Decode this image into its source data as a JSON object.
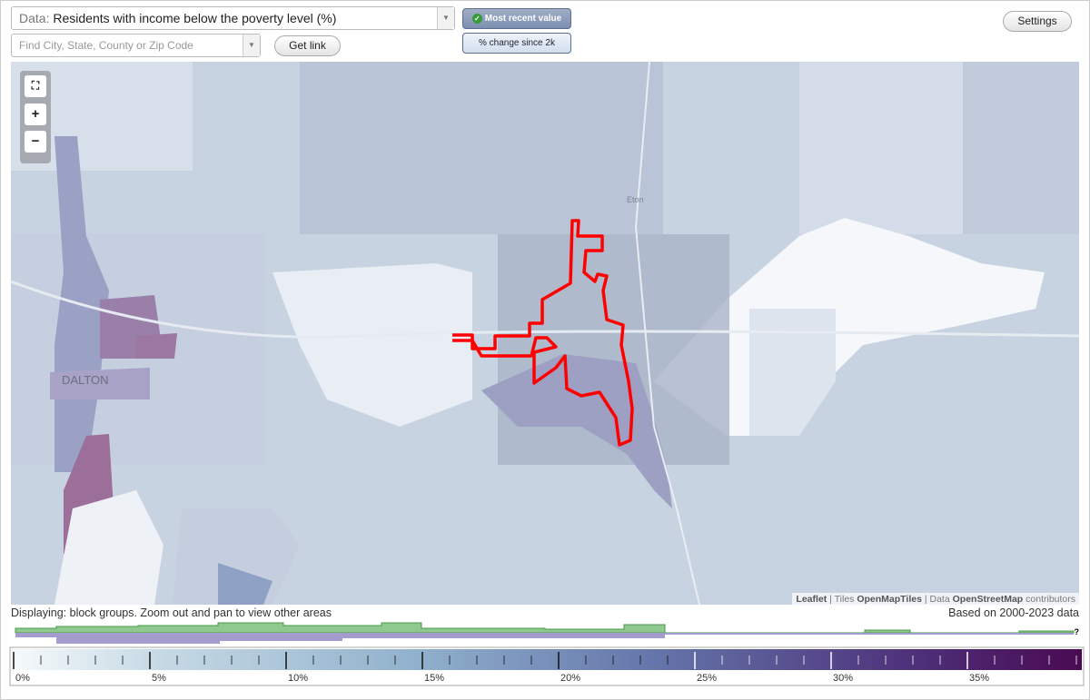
{
  "header": {
    "data_label": "Data:",
    "data_value": "Residents with income below the poverty level (%)",
    "search_placeholder": "Find City, State, County or Zip Code",
    "get_link": "Get link",
    "most_recent": "Most recent value",
    "pct_change": "% change since 2k",
    "settings": "Settings"
  },
  "map": {
    "zoom_in": "+",
    "zoom_out": "−",
    "place_labels": [
      "DALTON",
      "Eton"
    ],
    "attribution": [
      "Leaflet",
      "|",
      "Tiles",
      "OpenMapTiles",
      "|",
      "Data",
      "OpenStreetMap",
      "contributors"
    ]
  },
  "footer": {
    "displaying": "Displaying: block groups. Zoom out and pan to view other areas",
    "based_on": "Based on 2000-2023 data",
    "unknown": "?"
  },
  "legend": {
    "labels": [
      "0%",
      "5%",
      "10%",
      "15%",
      "20%",
      "25%",
      "30%",
      "35%"
    ]
  }
}
